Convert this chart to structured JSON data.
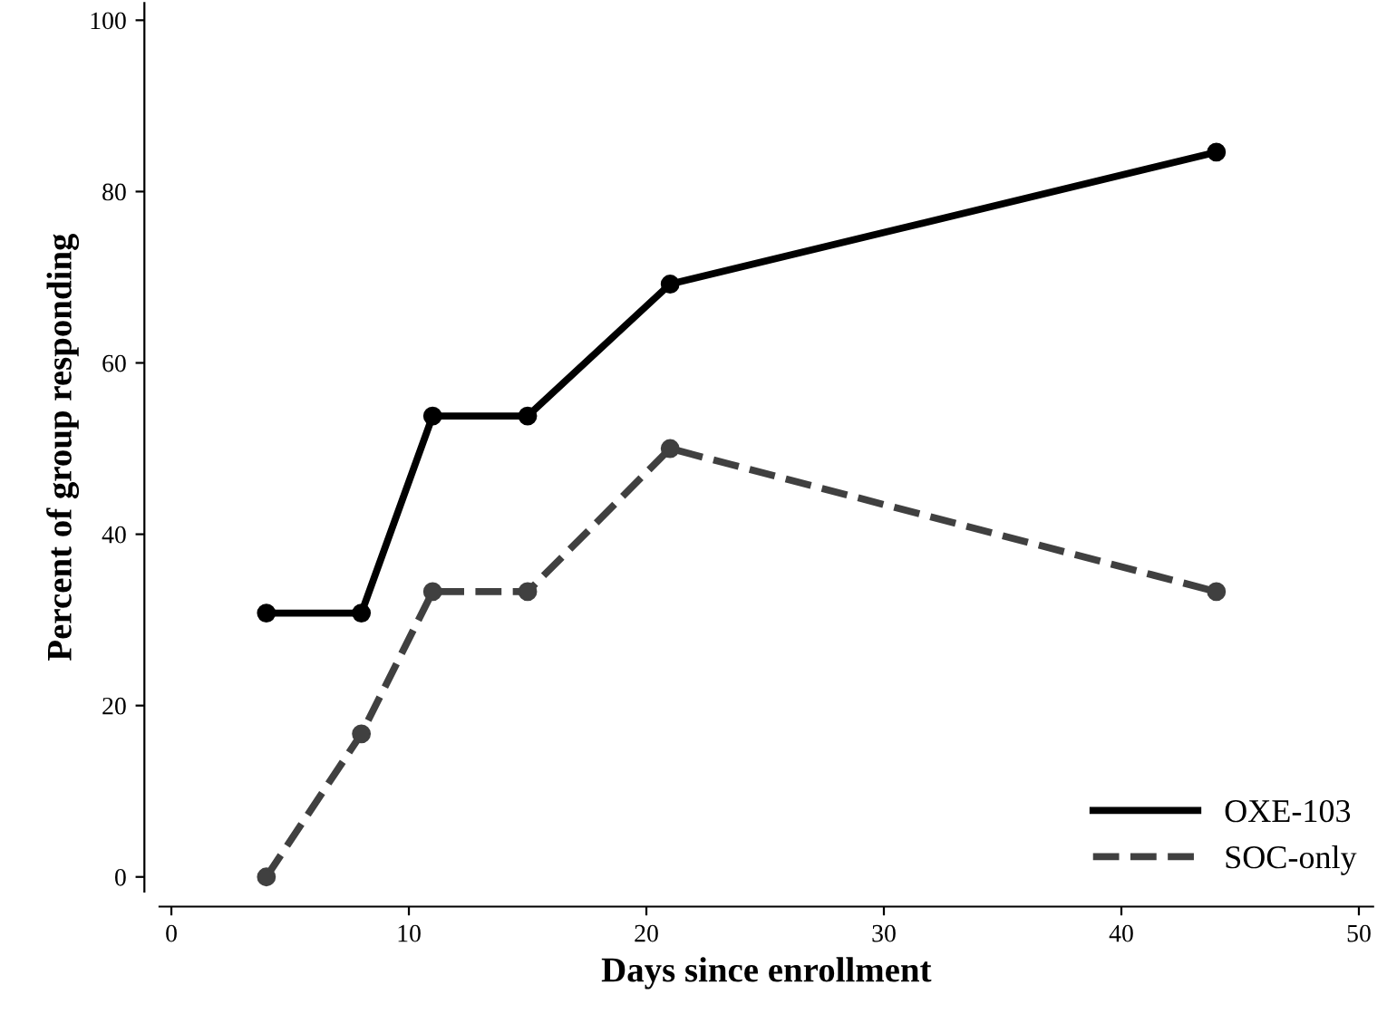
{
  "chart_data": {
    "type": "line",
    "xlabel": "Days since enrollment",
    "ylabel": "Percent of group responding",
    "x": [
      4,
      8,
      11,
      15,
      21,
      44
    ],
    "series": [
      {
        "name": "OXE-103",
        "color": "#000000",
        "values": [
          30.8,
          30.8,
          53.8,
          53.8,
          69.2,
          84.6
        ],
        "line_style": "solid"
      },
      {
        "name": "SOC-only",
        "color": "#404040",
        "values": [
          0,
          16.7,
          33.3,
          33.3,
          50,
          33.3
        ],
        "line_style": "dashed"
      }
    ],
    "xlim": [
      -0.5,
      50.6
    ],
    "ylim": [
      -1.7,
      102
    ],
    "xticks": [
      0,
      10,
      20,
      30,
      40,
      50
    ],
    "yticks": [
      0,
      20,
      40,
      60,
      80,
      100
    ],
    "marker": "circle",
    "legend": "bottom right",
    "grid": false
  }
}
